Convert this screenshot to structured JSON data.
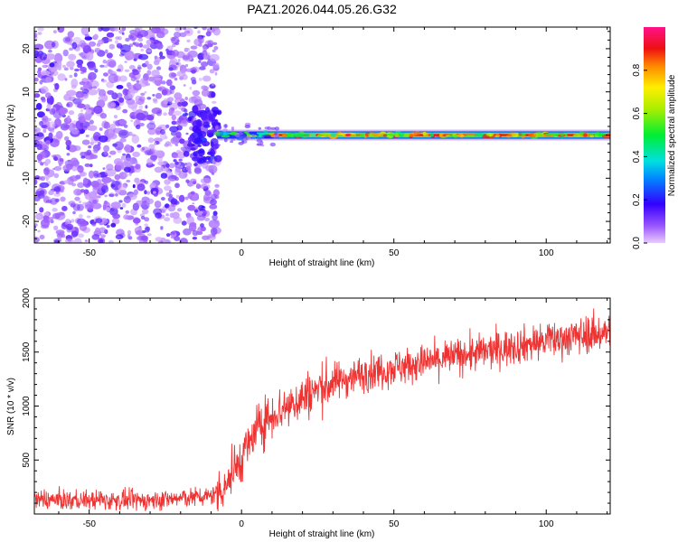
{
  "title": "PAZ1.2026.044.05.26.G32",
  "chart_data": [
    {
      "id": "spectrogram",
      "type": "heatmap",
      "xlabel": "Height of straight line (km)",
      "ylabel": "Frequency (Hz)",
      "xlim": [
        -68,
        121
      ],
      "ylim": [
        -25,
        25
      ],
      "xticks": [
        -50,
        0,
        50,
        100
      ],
      "yticks": [
        -20,
        -10,
        0,
        10,
        20
      ],
      "colorbar": {
        "label": "Normalized spectral amplitude",
        "range": [
          0,
          1
        ],
        "ticks": [
          0.0,
          0.2,
          0.4,
          0.6,
          0.8
        ],
        "tick_labels": [
          "0.0",
          "0.2",
          "0.4",
          "0.6",
          "0.8"
        ]
      },
      "noise_region_x": [
        -68,
        -8
      ],
      "noise_blob_count": 1200,
      "line": {
        "freq_hz": 0,
        "start_km": -8,
        "end_km": 121,
        "core_amplitude": 0.92,
        "blob_count": 220
      }
    },
    {
      "id": "snr",
      "type": "line",
      "xlabel": "Height of straight line (km)",
      "ylabel": "SNR (10 * v/v)",
      "xlim": [
        -68,
        121
      ],
      "ylim": [
        0,
        2000
      ],
      "xticks": [
        -50,
        0,
        50,
        100
      ],
      "yticks": [
        500,
        1000,
        1500,
        2000
      ],
      "color": "#ee3333",
      "sample_count": 1500,
      "trend_knots": [
        {
          "x": -68,
          "y": 130
        },
        {
          "x": -30,
          "y": 125
        },
        {
          "x": -10,
          "y": 165
        },
        {
          "x": -5,
          "y": 280
        },
        {
          "x": 0,
          "y": 520
        },
        {
          "x": 5,
          "y": 780
        },
        {
          "x": 10,
          "y": 920
        },
        {
          "x": 20,
          "y": 1080
        },
        {
          "x": 30,
          "y": 1220
        },
        {
          "x": 40,
          "y": 1300
        },
        {
          "x": 50,
          "y": 1360
        },
        {
          "x": 60,
          "y": 1400
        },
        {
          "x": 70,
          "y": 1460
        },
        {
          "x": 80,
          "y": 1500
        },
        {
          "x": 90,
          "y": 1560
        },
        {
          "x": 100,
          "y": 1600
        },
        {
          "x": 110,
          "y": 1650
        },
        {
          "x": 121,
          "y": 1690
        }
      ]
    }
  ]
}
